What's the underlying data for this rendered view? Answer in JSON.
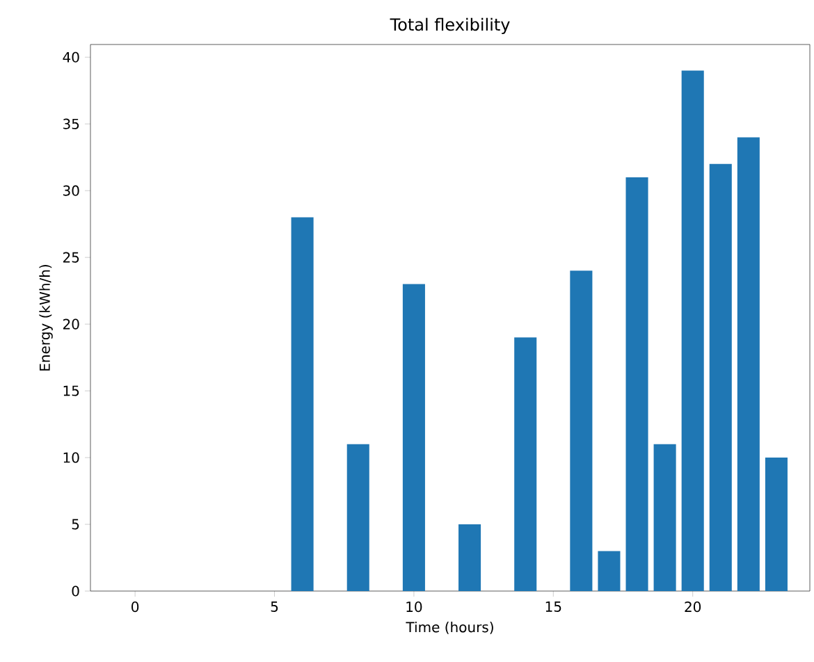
{
  "chart_data": {
    "type": "bar",
    "title": "Total flexibility",
    "xlabel": "Time (hours)",
    "ylabel": "Energy (kWh/h)",
    "x": [
      0,
      1,
      2,
      3,
      4,
      5,
      6,
      7,
      8,
      9,
      10,
      11,
      12,
      13,
      14,
      15,
      16,
      17,
      18,
      19,
      20,
      21,
      22,
      23
    ],
    "values": [
      0,
      0,
      0,
      0,
      0,
      0,
      28,
      0,
      11,
      0,
      23,
      0,
      5,
      0,
      19,
      0,
      24,
      3,
      31,
      11,
      39,
      32,
      34,
      10
    ],
    "color": "#1f77b4",
    "xlim": [
      -1.6,
      24.2
    ],
    "xticks": [
      0,
      5,
      10,
      15,
      20
    ],
    "ylim": [
      0,
      40.95
    ],
    "yticks": [
      0,
      5,
      10,
      15,
      20,
      25,
      30,
      35,
      40
    ]
  }
}
